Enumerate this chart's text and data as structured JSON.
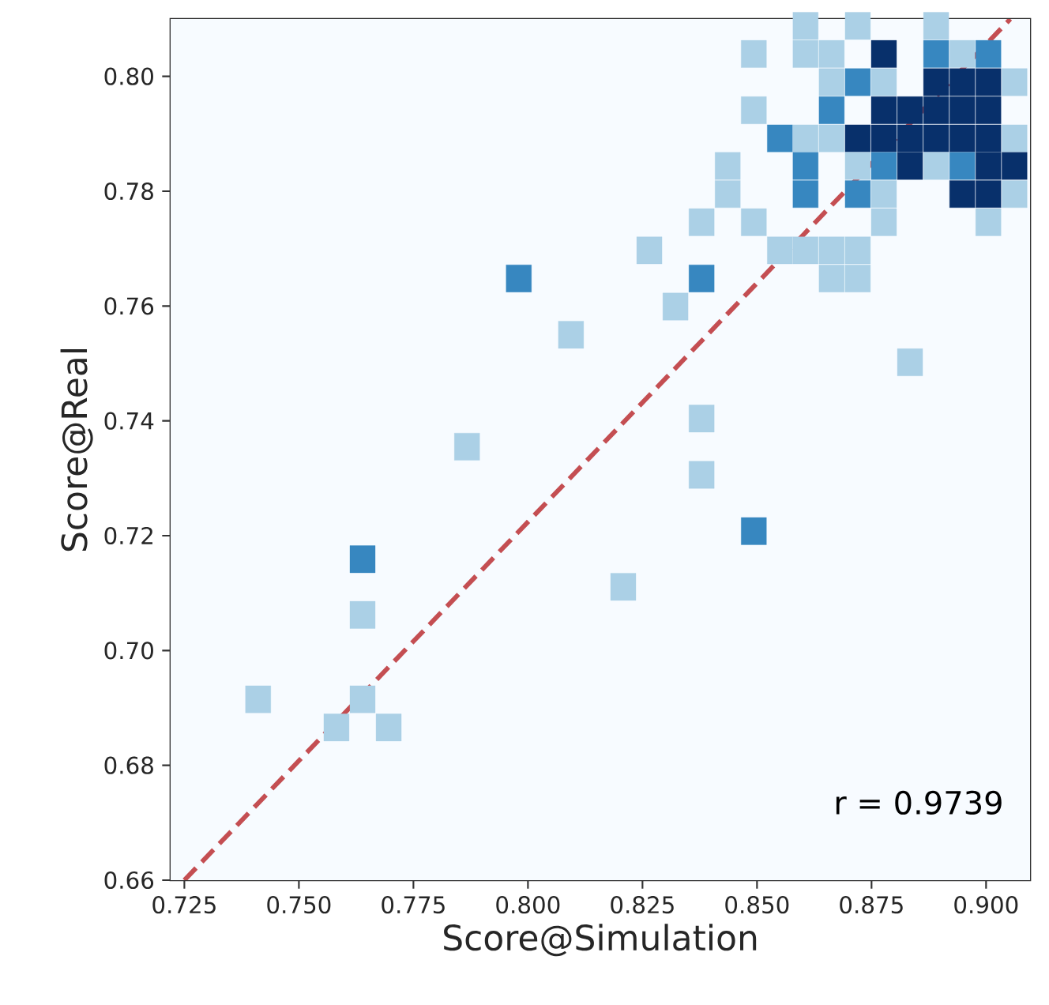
{
  "chart_data": {
    "type": "scatter",
    "xlabel": "Score@Simulation",
    "ylabel": "Score@Real",
    "xlim": [
      0.722,
      0.9096
    ],
    "ylim": [
      0.66,
      0.81
    ],
    "xticks": [
      0.725,
      {
        "value": 0.75,
        "label": "0.750"
      },
      0.775,
      {
        "value": 0.8,
        "label": "0.800"
      },
      0.825,
      {
        "value": 0.85,
        "label": "0.850"
      },
      0.875,
      {
        "value": 0.9,
        "label": "0.900"
      }
    ],
    "yticks": [
      0.66,
      0.68,
      {
        "value": 0.7,
        "label": "0.70"
      },
      0.72,
      0.74,
      0.76,
      0.78,
      {
        "value": 0.8,
        "label": "0.80"
      }
    ],
    "annotations": [
      "r = 0.9739"
    ],
    "series": [
      {
        "marker": "square",
        "x": [
          0.7411,
          0.7582,
          0.7639,
          0.7696,
          0.7639,
          0.7639,
          0.7867,
          0.798,
          0.8094,
          0.8208,
          0.8265,
          0.8322,
          0.8379,
          0.8379,
          0.8379,
          0.8379,
          0.8493,
          0.8834,
          0.8606,
          0.872,
          0.8891,
          0.8493,
          0.8606,
          0.8663,
          0.8777,
          0.8891,
          0.8948,
          0.9005,
          0.8663,
          0.872,
          0.8777,
          0.8891,
          0.8948,
          0.9005,
          0.9062,
          0.8493,
          0.8663,
          0.8777,
          0.8834,
          0.8891,
          0.8948,
          0.9005,
          0.855,
          0.8606,
          0.8663,
          0.872,
          0.8777,
          0.8834,
          0.8891,
          0.8948,
          0.9005,
          0.9062,
          0.8436,
          0.8606,
          0.872,
          0.8777,
          0.8834,
          0.8891,
          0.8948,
          0.9005,
          0.9062,
          0.8436,
          0.8606,
          0.872,
          0.8777,
          0.8948,
          0.9005,
          0.9062,
          0.8493,
          0.8777,
          0.9005,
          0.855,
          0.8606,
          0.8663,
          0.872,
          0.8663,
          0.872
        ],
        "values": [
          0.6915,
          0.6866,
          0.6915,
          0.6866,
          0.7062,
          0.7159,
          0.7355,
          0.7648,
          0.755,
          0.7111,
          0.7697,
          0.7599,
          0.7648,
          0.7404,
          0.7306,
          0.7746,
          0.7208,
          0.7502,
          0.8088,
          0.8088,
          0.8088,
          0.8039,
          0.8039,
          0.8039,
          0.8039,
          0.8039,
          0.8039,
          0.8039,
          0.799,
          0.799,
          0.799,
          0.799,
          0.799,
          0.799,
          0.799,
          0.7941,
          0.7941,
          0.7941,
          0.7941,
          0.7941,
          0.7941,
          0.7941,
          0.7892,
          0.7892,
          0.7892,
          0.7892,
          0.7892,
          0.7892,
          0.7892,
          0.7892,
          0.7892,
          0.7892,
          0.7844,
          0.7844,
          0.7844,
          0.7844,
          0.7844,
          0.7844,
          0.7844,
          0.7844,
          0.7844,
          0.7795,
          0.7795,
          0.7795,
          0.7795,
          0.7795,
          0.7795,
          0.7795,
          0.7746,
          0.7746,
          0.7746,
          0.7697,
          0.7697,
          0.7697,
          0.7697,
          0.7648,
          0.7648
        ],
        "colors": [
          "#abd0e6",
          "#abd0e6",
          "#abd0e6",
          "#abd0e6",
          "#abd0e6",
          "#3787c0",
          "#abd0e6",
          "#3787c0",
          "#abd0e6",
          "#abd0e6",
          "#abd0e6",
          "#abd0e6",
          "#3787c0",
          "#abd0e6",
          "#abd0e6",
          "#abd0e6",
          "#3787c0",
          "#abd0e6",
          "#abd0e6",
          "#abd0e6",
          "#abd0e6",
          "#abd0e6",
          "#abd0e6",
          "#abd0e6",
          "#08306b",
          "#3787c0",
          "#abd0e6",
          "#3787c0",
          "#abd0e6",
          "#3787c0",
          "#abd0e6",
          "#08306b",
          "#08306b",
          "#08306b",
          "#abd0e6",
          "#abd0e6",
          "#3787c0",
          "#08306b",
          "#08306b",
          "#08306b",
          "#08306b",
          "#08306b",
          "#3787c0",
          "#abd0e6",
          "#abd0e6",
          "#08306b",
          "#08306b",
          "#08306b",
          "#08306b",
          "#08306b",
          "#08306b",
          "#abd0e6",
          "#abd0e6",
          "#3787c0",
          "#abd0e6",
          "#3787c0",
          "#08306b",
          "#abd0e6",
          "#3787c0",
          "#08306b",
          "#08306b",
          "#abd0e6",
          "#3787c0",
          "#3787c0",
          "#abd0e6",
          "#08306b",
          "#08306b",
          "#abd0e6",
          "#abd0e6",
          "#abd0e6",
          "#abd0e6",
          "#abd0e6",
          "#abd0e6",
          "#abd0e6",
          "#abd0e6",
          "#abd0e6",
          "#abd0e6"
        ]
      },
      {
        "type": "line",
        "marker": "none",
        "line_style": "dashed",
        "color": "#c44e52",
        "x": [
          0.725,
          0.9053
        ],
        "values": [
          0.66,
          0.81
        ]
      }
    ]
  }
}
